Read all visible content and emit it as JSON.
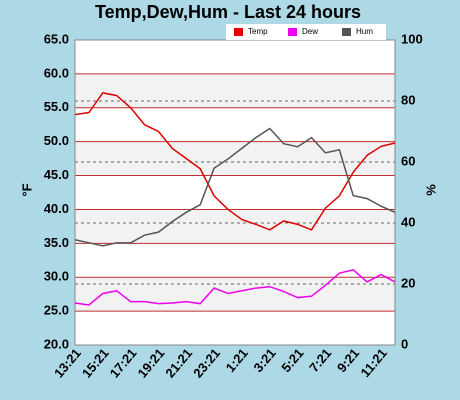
{
  "chart_data": {
    "type": "line",
    "title": "Temp,Dew,Hum - Last 24 hours",
    "ylabel": "°F",
    "y2label": "%",
    "categories": [
      "13:21",
      null,
      "15:21",
      null,
      "17:21",
      null,
      "19:21",
      null,
      "21:21",
      null,
      "23:21",
      null,
      "1:21",
      null,
      "3:21",
      null,
      "5:21",
      null,
      "7:21",
      null,
      "9:21",
      null,
      "11:21",
      null
    ],
    "series": [
      {
        "name": "Temp",
        "color": "#dd0000",
        "values": [
          54,
          54.3,
          57.2,
          56.8,
          55,
          52.5,
          51.5,
          49,
          47.5,
          46,
          42,
          40,
          38.5,
          37.8,
          37,
          38.3,
          37.8,
          37,
          40.2,
          42,
          45.5,
          48,
          49.3,
          49.8
        ]
      },
      {
        "name": "Dew",
        "color": "#ee00ee",
        "values": [
          26.2,
          25.9,
          27.6,
          28,
          26.4,
          26.4,
          26.1,
          26.2,
          26.4,
          26.1,
          28.4,
          27.6,
          28,
          28.4,
          28.6,
          27.9,
          27,
          27.2,
          28.8,
          30.6,
          31.1,
          29.3,
          30.4,
          29.3
        ]
      },
      {
        "name": "Hum",
        "color": "#555555",
        "axis": "y2",
        "values": [
          34.5,
          33.5,
          32.5,
          33.5,
          33.5,
          36,
          37,
          40.5,
          43.5,
          46,
          58,
          61,
          64.5,
          68,
          71,
          66,
          65,
          68,
          63,
          64,
          49,
          48,
          45.5,
          43.5
        ]
      }
    ],
    "ylim": [
      20,
      65
    ],
    "yticks": [
      {
        "value": 20,
        "label": "20.0"
      },
      {
        "value": 25,
        "label": "25.0"
      },
      {
        "value": 30,
        "label": "30.0"
      },
      {
        "value": 35,
        "label": "35.0"
      },
      {
        "value": 40,
        "label": "40.0"
      },
      {
        "value": 45,
        "label": "45.0"
      },
      {
        "value": 50,
        "label": "50.0"
      },
      {
        "value": 55,
        "label": "55.0"
      },
      {
        "value": 60,
        "label": "60.0"
      },
      {
        "value": 65,
        "label": "65.0"
      }
    ],
    "y2lim": [
      0,
      100
    ],
    "y2ticks": [
      0,
      20,
      40,
      60,
      80,
      100
    ],
    "grid": true,
    "legend": "top-right"
  }
}
